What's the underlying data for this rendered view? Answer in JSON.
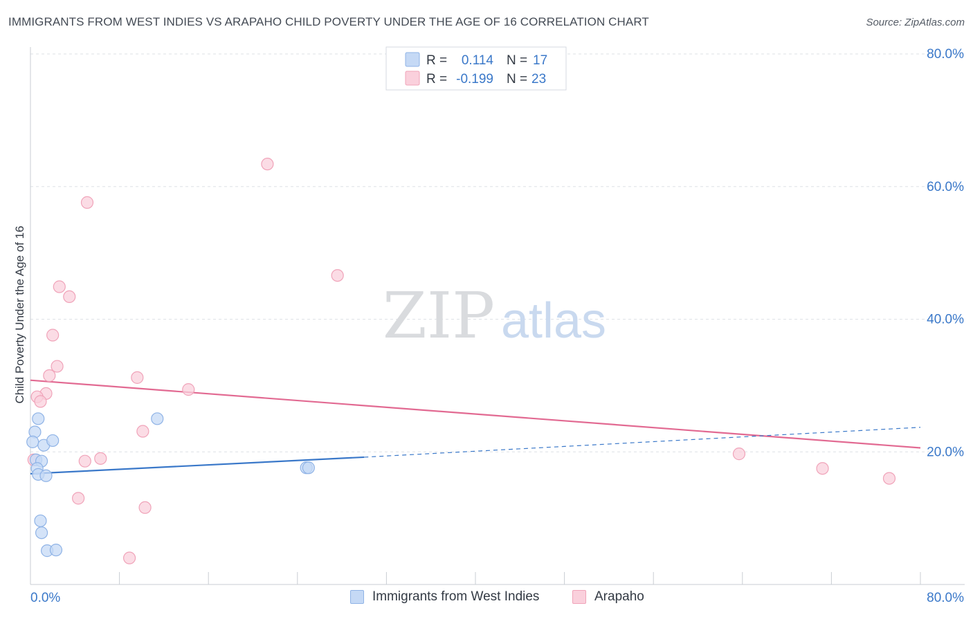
{
  "title": "IMMIGRANTS FROM WEST INDIES VS ARAPAHO CHILD POVERTY UNDER THE AGE OF 16 CORRELATION CHART",
  "source": "Source: ZipAtlas.com",
  "watermark": {
    "zip": "ZIP",
    "atlas": "atlas"
  },
  "legend_top": {
    "rows": [
      {
        "r_label": "R =",
        "r_value": "0.114",
        "n_label": "N =",
        "n_value": "17"
      },
      {
        "r_label": "R =",
        "r_value": "-0.199",
        "n_label": "N =",
        "n_value": "23"
      }
    ]
  },
  "colors": {
    "blue_fill": "#c5d9f5",
    "blue_stroke": "#8fb3e6",
    "blue_line": "#3a78c9",
    "pink_fill": "#fad0dc",
    "pink_stroke": "#f0a3b9",
    "pink_line": "#e26a92",
    "axis_text": "#3a78c9",
    "grid": "#dde1e6"
  },
  "chart_data": {
    "type": "scatter",
    "title": "IMMIGRANTS FROM WEST INDIES VS ARAPAHO CHILD POVERTY UNDER THE AGE OF 16 CORRELATION CHART",
    "xlabel": "",
    "ylabel": "Child Poverty Under the Age of 16",
    "xlim": [
      0,
      80
    ],
    "ylim": [
      0,
      80
    ],
    "x_tick_labels": [
      "0.0%",
      "80.0%"
    ],
    "y_tick_labels": [
      "20.0%",
      "40.0%",
      "60.0%",
      "80.0%"
    ],
    "y_ticks": [
      20,
      40,
      60,
      80
    ],
    "legend": "bottom-center",
    "series": [
      {
        "name": "Immigrants from West Indies",
        "color": "#c5d9f5",
        "r": 0.114,
        "n": 17,
        "points": [
          [
            0.4,
            23.0
          ],
          [
            0.2,
            21.5
          ],
          [
            0.7,
            25.0
          ],
          [
            1.2,
            21.0
          ],
          [
            2.0,
            21.7
          ],
          [
            0.5,
            18.8
          ],
          [
            1.0,
            18.6
          ],
          [
            0.6,
            17.5
          ],
          [
            0.7,
            16.6
          ],
          [
            1.4,
            16.4
          ],
          [
            11.4,
            25.0
          ],
          [
            24.8,
            17.6
          ],
          [
            25.0,
            17.6
          ],
          [
            0.9,
            9.6
          ],
          [
            1.0,
            7.8
          ],
          [
            1.5,
            5.1
          ],
          [
            2.3,
            5.2
          ]
        ],
        "trend": {
          "x": [
            0,
            30
          ],
          "y": [
            16.7,
            19.2
          ]
        },
        "trend_extended": {
          "x": [
            30,
            80
          ],
          "y": [
            19.2,
            23.7
          ]
        }
      },
      {
        "name": "Arapaho",
        "color": "#fad0dc",
        "r": -0.199,
        "n": 23,
        "points": [
          [
            21.3,
            63.4
          ],
          [
            5.1,
            57.6
          ],
          [
            27.6,
            46.6
          ],
          [
            2.6,
            44.9
          ],
          [
            3.5,
            43.4
          ],
          [
            2.0,
            37.6
          ],
          [
            2.4,
            32.9
          ],
          [
            1.7,
            31.5
          ],
          [
            9.6,
            31.2
          ],
          [
            1.4,
            28.8
          ],
          [
            0.6,
            28.3
          ],
          [
            0.9,
            27.6
          ],
          [
            14.2,
            29.4
          ],
          [
            10.1,
            23.1
          ],
          [
            6.3,
            19.0
          ],
          [
            4.9,
            18.6
          ],
          [
            0.3,
            18.8
          ],
          [
            4.3,
            13.0
          ],
          [
            10.3,
            11.6
          ],
          [
            8.9,
            4.0
          ],
          [
            63.7,
            19.7
          ],
          [
            71.2,
            17.5
          ],
          [
            77.2,
            16.0
          ]
        ],
        "trend": {
          "x": [
            0,
            80
          ],
          "y": [
            30.8,
            20.6
          ]
        }
      }
    ]
  }
}
